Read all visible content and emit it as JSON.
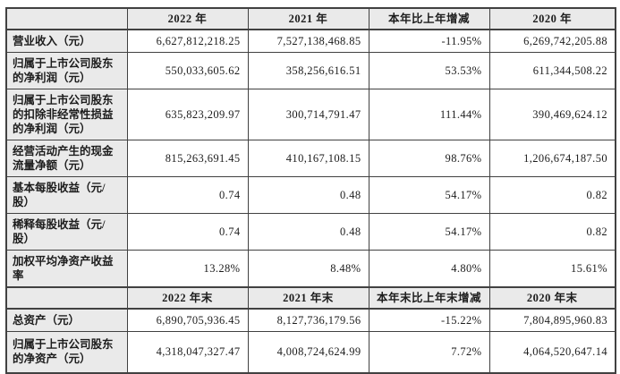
{
  "document": {
    "type": "financial-key-figures-table",
    "colors": {
      "border": "#414141",
      "header_bg": "#eaeaea",
      "label_bg": "#eaeaea",
      "cell_bg": "#ffffff",
      "text": "#1c1c1c"
    },
    "table": {
      "header1": {
        "corner": "",
        "cols": [
          "2022 年",
          "2021 年",
          "本年比上年增减",
          "2020 年"
        ]
      },
      "rows1": [
        {
          "label": "营业收入（元）",
          "values": [
            "6,627,812,218.25",
            "7,527,138,468.85",
            "-11.95%",
            "6,269,742,205.88"
          ]
        },
        {
          "label": "归属于上市公司股东的净利润（元）",
          "values": [
            "550,033,605.62",
            "358,256,616.51",
            "53.53%",
            "611,344,508.22"
          ]
        },
        {
          "label": "归属于上市公司股东的扣除非经常性损益的净利润（元）",
          "values": [
            "635,823,209.97",
            "300,714,791.47",
            "111.44%",
            "390,469,624.12"
          ]
        },
        {
          "label": "经营活动产生的现金流量净额（元）",
          "values": [
            "815,263,691.45",
            "410,167,108.15",
            "98.76%",
            "1,206,674,187.50"
          ]
        },
        {
          "label": "基本每股收益（元/股）",
          "values": [
            "0.74",
            "0.48",
            "54.17%",
            "0.82"
          ]
        },
        {
          "label": "稀释每股收益（元/股）",
          "values": [
            "0.74",
            "0.48",
            "54.17%",
            "0.82"
          ]
        },
        {
          "label": "加权平均净资产收益率",
          "values": [
            "13.28%",
            "8.48%",
            "4.80%",
            "15.61%"
          ]
        }
      ],
      "header2": {
        "corner": "",
        "cols": [
          "2022 年末",
          "2021 年末",
          "本年末比上年末增减",
          "2020 年末"
        ]
      },
      "rows2": [
        {
          "label": "总资产（元）",
          "values": [
            "6,890,705,936.45",
            "8,127,736,179.56",
            "-15.22%",
            "7,804,895,960.83"
          ]
        },
        {
          "label": "归属于上市公司股东的净资产（元）",
          "values": [
            "4,318,047,327.47",
            "4,008,724,624.99",
            "7.72%",
            "4,064,520,647.14"
          ]
        }
      ]
    }
  }
}
